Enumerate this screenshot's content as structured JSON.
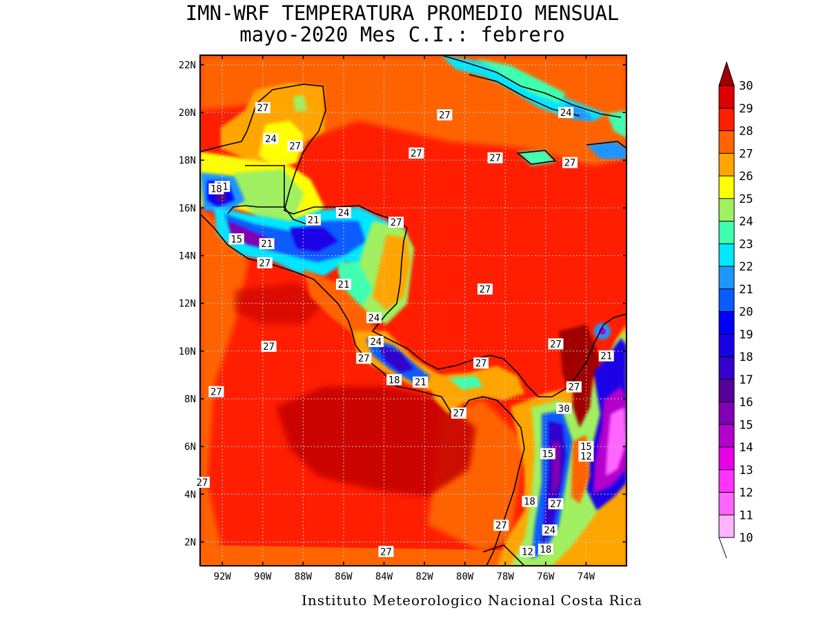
{
  "title_line1": "IMN-WRF  TEMPERATURA PROMEDIO MENSUAL",
  "title_line2": "mayo-2020 Mes C.I.: febrero",
  "footer": "Instituto Meteorologico Nacional Costa Rica",
  "map": {
    "lat_ticks": [
      "2N",
      "4N",
      "6N",
      "8N",
      "10N",
      "12N",
      "14N",
      "16N",
      "18N",
      "20N",
      "22N"
    ],
    "lon_ticks": [
      "92W",
      "90W",
      "88W",
      "86W",
      "84W",
      "82W",
      "80W",
      "78W",
      "76W",
      "74W"
    ],
    "contour_labels": [
      {
        "text": "27",
        "lon": -90.0,
        "lat": 20.2
      },
      {
        "text": "24",
        "lon": -89.6,
        "lat": 18.9
      },
      {
        "text": "27",
        "lon": -88.4,
        "lat": 18.6
      },
      {
        "text": "21",
        "lon": -92.0,
        "lat": 16.9
      },
      {
        "text": "18",
        "lon": -92.3,
        "lat": 16.8
      },
      {
        "text": "21",
        "lon": -87.5,
        "lat": 15.5
      },
      {
        "text": "24",
        "lon": -86.0,
        "lat": 15.8
      },
      {
        "text": "27",
        "lon": -83.4,
        "lat": 15.4
      },
      {
        "text": "15",
        "lon": -91.3,
        "lat": 14.7
      },
      {
        "text": "21",
        "lon": -89.8,
        "lat": 14.5
      },
      {
        "text": "27",
        "lon": -89.9,
        "lat": 13.7
      },
      {
        "text": "21",
        "lon": -86.0,
        "lat": 12.8
      },
      {
        "text": "24",
        "lon": -84.5,
        "lat": 11.4
      },
      {
        "text": "24",
        "lon": -84.4,
        "lat": 10.4
      },
      {
        "text": "27",
        "lon": -85.0,
        "lat": 9.7
      },
      {
        "text": "18",
        "lon": -83.5,
        "lat": 8.8
      },
      {
        "text": "21",
        "lon": -82.2,
        "lat": 8.7
      },
      {
        "text": "27",
        "lon": -79.2,
        "lat": 9.5
      },
      {
        "text": "27",
        "lon": -80.3,
        "lat": 7.4
      },
      {
        "text": "27",
        "lon": -81.0,
        "lat": 19.9
      },
      {
        "text": "27",
        "lon": -82.4,
        "lat": 18.3
      },
      {
        "text": "27",
        "lon": -78.5,
        "lat": 18.1
      },
      {
        "text": "27",
        "lon": -74.8,
        "lat": 17.9
      },
      {
        "text": "24",
        "lon": -75.0,
        "lat": 20.0
      },
      {
        "text": "27",
        "lon": -79.0,
        "lat": 12.6
      },
      {
        "text": "27",
        "lon": -75.5,
        "lat": 10.3
      },
      {
        "text": "21",
        "lon": -73.0,
        "lat": 9.8
      },
      {
        "text": "27",
        "lon": -74.6,
        "lat": 8.5
      },
      {
        "text": "30",
        "lon": -75.1,
        "lat": 7.6
      },
      {
        "text": "15",
        "lon": -74.0,
        "lat": 6.0
      },
      {
        "text": "12",
        "lon": -74.0,
        "lat": 5.6
      },
      {
        "text": "15",
        "lon": -75.9,
        "lat": 5.7
      },
      {
        "text": "18",
        "lon": -76.8,
        "lat": 3.7
      },
      {
        "text": "27",
        "lon": -75.5,
        "lat": 3.6
      },
      {
        "text": "24",
        "lon": -75.8,
        "lat": 2.5
      },
      {
        "text": "12",
        "lon": -76.9,
        "lat": 1.6
      },
      {
        "text": "18",
        "lon": -76.0,
        "lat": 1.7
      },
      {
        "text": "27",
        "lon": -78.2,
        "lat": 2.7
      },
      {
        "text": "27",
        "lon": -92.3,
        "lat": 8.3
      },
      {
        "text": "27",
        "lon": -89.7,
        "lat": 10.2
      },
      {
        "text": "27",
        "lon": -83.9,
        "lat": 1.6
      },
      {
        "text": "27",
        "lon": -93.0,
        "lat": 4.5
      }
    ]
  },
  "colorbar": {
    "labels": [
      "10",
      "11",
      "12",
      "13",
      "14",
      "15",
      "16",
      "17",
      "18",
      "19",
      "20",
      "21",
      "22",
      "23",
      "24",
      "25",
      "26",
      "27",
      "28",
      "29",
      "30"
    ],
    "colors": [
      "#ffb3ff",
      "#ff66ff",
      "#ff33ff",
      "#e600e6",
      "#b300cc",
      "#8000b3",
      "#550099",
      "#3300cc",
      "#1a00e6",
      "#0000ff",
      "#0a5cff",
      "#1e96ff",
      "#00e6ff",
      "#40ffb0",
      "#a0f060",
      "#ffff00",
      "#ffa500",
      "#ff6400",
      "#ff1e00",
      "#dc0000",
      "#a00000"
    ]
  }
}
